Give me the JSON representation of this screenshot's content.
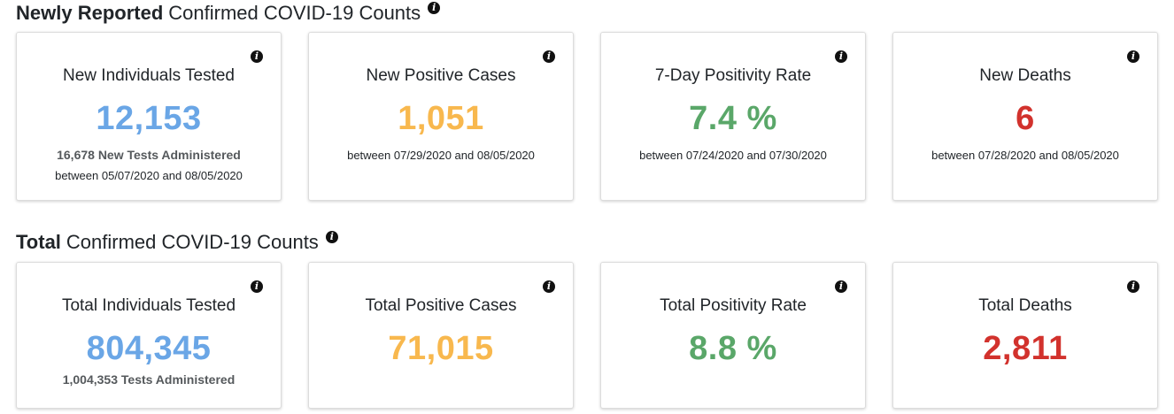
{
  "colors": {
    "blue": "#6aa6e6",
    "orange": "#f8b84e",
    "green": "#5aa769",
    "red": "#d2322d"
  },
  "info_icon_glyph": "i",
  "new_section": {
    "heading_bold": "Newly Reported",
    "heading_rest": "Confirmed COVID-19 Counts",
    "cards": [
      {
        "title": "New Individuals Tested",
        "value": "12,153",
        "color": "blue",
        "sub_strong": "16,678 New Tests Administered",
        "sub_date": "between 05/07/2020 and 08/05/2020"
      },
      {
        "title": "New Positive Cases",
        "value": "1,051",
        "color": "orange",
        "sub_date": "between 07/29/2020 and 08/05/2020"
      },
      {
        "title": "7-Day Positivity Rate",
        "value": "7.4 %",
        "color": "green",
        "sub_date": "between 07/24/2020 and 07/30/2020"
      },
      {
        "title": "New Deaths",
        "value": "6",
        "color": "red",
        "sub_date": "between 07/28/2020 and 08/05/2020"
      }
    ]
  },
  "total_section": {
    "heading_bold": "Total",
    "heading_rest": "Confirmed COVID-19 Counts",
    "cards": [
      {
        "title": "Total Individuals Tested",
        "value": "804,345",
        "color": "blue",
        "sub_strong": "1,004,353 Tests Administered"
      },
      {
        "title": "Total Positive Cases",
        "value": "71,015",
        "color": "orange"
      },
      {
        "title": "Total Positivity Rate",
        "value": "8.8 %",
        "color": "green"
      },
      {
        "title": "Total Deaths",
        "value": "2,811",
        "color": "red"
      }
    ]
  }
}
